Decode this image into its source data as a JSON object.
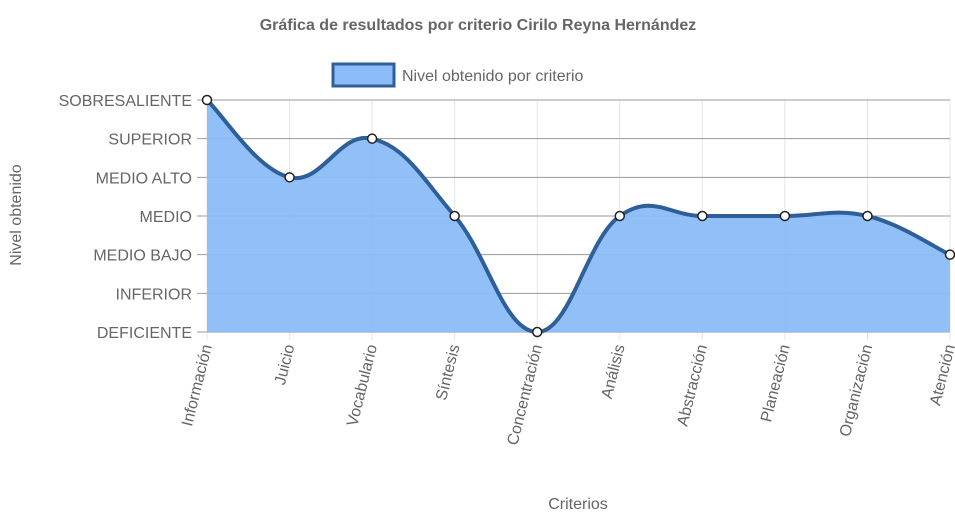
{
  "chart_data": {
    "type": "area",
    "title": "Gráfica de resultados por criterio Cirilo Reyna Hernández",
    "xlabel": "Criterios",
    "ylabel": "Nivel obtenido",
    "categories": [
      "Información",
      "Juicio",
      "Vocabulario",
      "Síntesis",
      "Concentración",
      "Análisis",
      "Abstracción",
      "Planeación",
      "Organización",
      "Atención"
    ],
    "y_levels": [
      "DEFICIENTE",
      "INFERIOR",
      "MEDIO BAJO",
      "MEDIO",
      "MEDIO ALTO",
      "SUPERIOR",
      "SOBRESALIENTE"
    ],
    "ylim": [
      0,
      6
    ],
    "series": [
      {
        "name": "Nivel obtenido por criterio",
        "values": [
          6,
          4,
          5,
          3,
          0,
          3,
          3,
          3,
          3,
          2
        ],
        "fill_color": "#8bbcf7",
        "line_color": "#2f5f98"
      }
    ],
    "legend_position": "top",
    "grid": true
  }
}
